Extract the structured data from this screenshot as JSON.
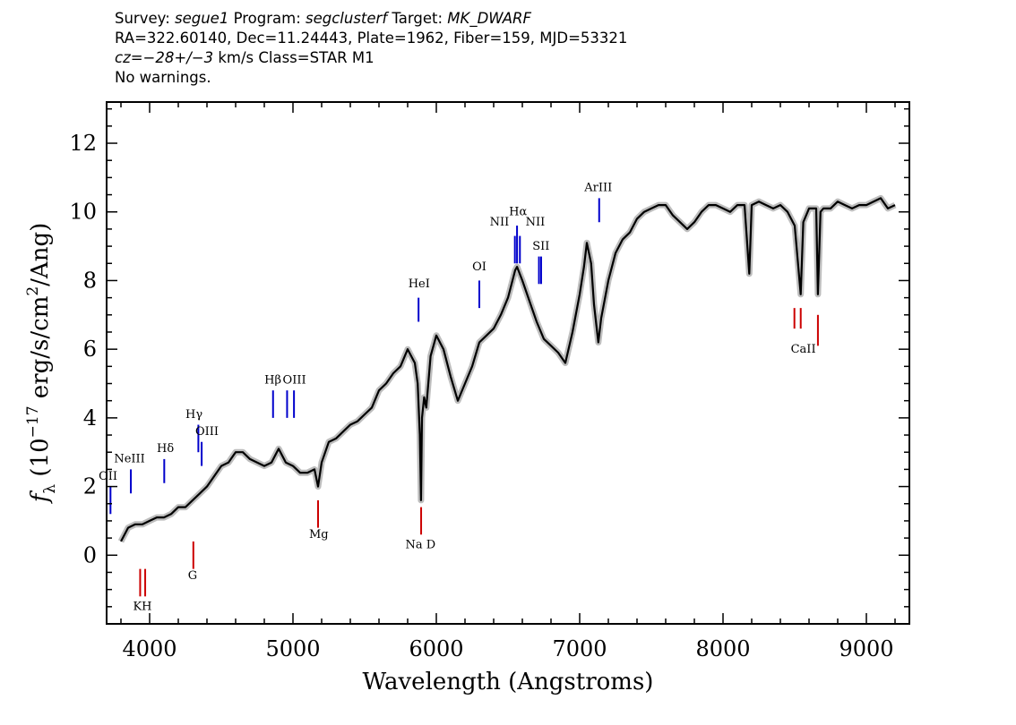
{
  "header": {
    "line1": {
      "survey_label": "Survey: ",
      "survey": "segue1",
      "program_label": " Program: ",
      "program": "segclusterf",
      "target_label": " Target: ",
      "target": "MK_DWARF"
    },
    "line2": "RA=322.60140, Dec=11.24443, Plate=1962, Fiber=159, MJD=53321",
    "line3": {
      "cz": "cz=−28+/−3",
      "rest": " km/s Class=STAR M1"
    },
    "line4": "No warnings."
  },
  "chart_data": {
    "type": "line",
    "xlabel": "Wavelength (Angstroms)",
    "ylabel": "f_λ (10^-17 erg/s/cm^2/Ang)",
    "xlim": [
      3700,
      9300
    ],
    "ylim": [
      -2,
      13.2
    ],
    "xticks": [
      4000,
      5000,
      6000,
      7000,
      8000,
      9000
    ],
    "yticks": [
      0,
      2,
      4,
      6,
      8,
      10,
      12
    ],
    "colors": {
      "flux": "#000000",
      "noise": "#bdbdbd",
      "emission": "#0000cc",
      "absorption": "#cc0000"
    },
    "series": [
      {
        "name": "flux",
        "x": [
          3800,
          3850,
          3900,
          3950,
          4000,
          4050,
          4100,
          4150,
          4200,
          4250,
          4300,
          4350,
          4400,
          4450,
          4500,
          4550,
          4600,
          4650,
          4700,
          4750,
          4800,
          4850,
          4900,
          4950,
          5000,
          5050,
          5100,
          5150,
          5175,
          5200,
          5250,
          5300,
          5350,
          5400,
          5450,
          5500,
          5550,
          5600,
          5650,
          5700,
          5750,
          5800,
          5850,
          5870,
          5885,
          5893,
          5900,
          5915,
          5930,
          5960,
          6000,
          6050,
          6100,
          6150,
          6200,
          6250,
          6300,
          6350,
          6400,
          6450,
          6500,
          6550,
          6563,
          6600,
          6650,
          6700,
          6750,
          6800,
          6850,
          6900,
          6950,
          7000,
          7030,
          7050,
          7080,
          7100,
          7130,
          7150,
          7200,
          7250,
          7300,
          7350,
          7400,
          7450,
          7500,
          7550,
          7600,
          7650,
          7700,
          7750,
          7800,
          7850,
          7900,
          7950,
          8000,
          8050,
          8100,
          8150,
          8183,
          8200,
          8250,
          8300,
          8350,
          8400,
          8450,
          8500,
          8542,
          8560,
          8600,
          8650,
          8662,
          8680,
          8700,
          8750,
          8800,
          8850,
          8900,
          8950,
          9000,
          9050,
          9100,
          9150,
          9200
        ],
        "y": [
          0.4,
          0.8,
          0.9,
          0.9,
          1.0,
          1.1,
          1.1,
          1.2,
          1.4,
          1.4,
          1.6,
          1.8,
          2.0,
          2.3,
          2.6,
          2.7,
          3.0,
          3.0,
          2.8,
          2.7,
          2.6,
          2.7,
          3.1,
          2.7,
          2.6,
          2.4,
          2.4,
          2.5,
          2.0,
          2.7,
          3.3,
          3.4,
          3.6,
          3.8,
          3.9,
          4.1,
          4.3,
          4.8,
          5.0,
          5.3,
          5.5,
          6.0,
          5.6,
          5.0,
          3.5,
          1.6,
          4.0,
          4.6,
          4.3,
          5.8,
          6.4,
          6.0,
          5.2,
          4.5,
          5.0,
          5.5,
          6.2,
          6.4,
          6.6,
          7.0,
          7.5,
          8.3,
          8.4,
          8.0,
          7.4,
          6.8,
          6.3,
          6.1,
          5.9,
          5.6,
          6.5,
          7.6,
          8.4,
          9.1,
          8.5,
          7.3,
          6.2,
          6.9,
          8.0,
          8.8,
          9.2,
          9.4,
          9.8,
          10.0,
          10.1,
          10.2,
          10.2,
          9.9,
          9.7,
          9.5,
          9.7,
          10.0,
          10.2,
          10.2,
          10.1,
          10.0,
          10.2,
          10.2,
          8.2,
          10.2,
          10.3,
          10.2,
          10.1,
          10.2,
          10.0,
          9.6,
          7.6,
          9.7,
          10.1,
          10.1,
          7.6,
          10.0,
          10.1,
          10.1,
          10.3,
          10.2,
          10.1,
          10.2,
          10.2,
          10.3,
          10.4,
          10.1,
          10.2
        ]
      }
    ],
    "emission_lines": [
      {
        "label": "OII",
        "wave": 3727,
        "ymin": 1.2,
        "ymax": 2.0
      },
      {
        "label": "NeIII",
        "wave": 3869,
        "ymin": 1.8,
        "ymax": 2.5
      },
      {
        "label": "Hδ",
        "wave": 4102,
        "ymin": 2.1,
        "ymax": 2.8
      },
      {
        "label": "Hγ",
        "wave": 4340,
        "ymin": 3.0,
        "ymax": 3.8
      },
      {
        "label": "OIII",
        "wave": 4363,
        "ymin": 2.6,
        "ymax": 3.3
      },
      {
        "label": "Hβ",
        "wave": 4861,
        "ymin": 4.0,
        "ymax": 4.8
      },
      {
        "label": "OIII",
        "wave": 4959,
        "ymin": 4.0,
        "ymax": 4.8
      },
      {
        "label": "OIII",
        "wave": 5007,
        "ymin": 4.0,
        "ymax": 4.8
      },
      {
        "label": "HeI",
        "wave": 5876,
        "ymin": 6.8,
        "ymax": 7.5
      },
      {
        "label": "OI",
        "wave": 6300,
        "ymin": 7.2,
        "ymax": 8.0
      },
      {
        "label": "NII",
        "wave": 6548,
        "ymin": 8.5,
        "ymax": 9.3
      },
      {
        "label": "Hα",
        "wave": 6563,
        "ymin": 8.5,
        "ymax": 9.6
      },
      {
        "label": "NII",
        "wave": 6583,
        "ymin": 8.5,
        "ymax": 9.3
      },
      {
        "label": "SII",
        "wave": 6716,
        "ymin": 7.9,
        "ymax": 8.7
      },
      {
        "label": "SII",
        "wave": 6731,
        "ymin": 7.9,
        "ymax": 8.7
      },
      {
        "label": "ArIII",
        "wave": 7136,
        "ymin": 9.7,
        "ymax": 10.4
      }
    ],
    "absorption_lines": [
      {
        "label": "K",
        "wave": 3934,
        "ymin": -1.2,
        "ymax": -0.4
      },
      {
        "label": "H",
        "wave": 3969,
        "ymin": -1.2,
        "ymax": -0.4
      },
      {
        "label": "G",
        "wave": 4305,
        "ymin": -0.4,
        "ymax": 0.4
      },
      {
        "label": "Mg",
        "wave": 5175,
        "ymin": 0.8,
        "ymax": 1.6
      },
      {
        "label": "Na D",
        "wave": 5894,
        "ymin": 0.6,
        "ymax": 1.4
      },
      {
        "label": "CaII",
        "wave": 8498,
        "ymin": 6.6,
        "ymax": 7.2
      },
      {
        "label": "CaII",
        "wave": 8542,
        "ymin": 6.6,
        "ymax": 7.2
      },
      {
        "label": "CaII",
        "wave": 8662,
        "ymin": 6.1,
        "ymax": 7.0
      }
    ],
    "line_labels": [
      {
        "text": "OII",
        "wave": 3710,
        "y": 2.2
      },
      {
        "text": "NeIII",
        "wave": 3860,
        "y": 2.7
      },
      {
        "text": "Hδ",
        "wave": 4110,
        "y": 3.0
      },
      {
        "text": "Hγ",
        "wave": 4310,
        "y": 4.0
      },
      {
        "text": "OIII",
        "wave": 4400,
        "y": 3.5
      },
      {
        "text": "Hβ",
        "wave": 4860,
        "y": 5.0
      },
      {
        "text": "OIII",
        "wave": 5010,
        "y": 5.0
      },
      {
        "text": "HeI",
        "wave": 5880,
        "y": 7.8
      },
      {
        "text": "OI",
        "wave": 6300,
        "y": 8.3
      },
      {
        "text": "NII",
        "wave": 6440,
        "y": 9.6
      },
      {
        "text": "Hα",
        "wave": 6570,
        "y": 9.9
      },
      {
        "text": "NII",
        "wave": 6690,
        "y": 9.6
      },
      {
        "text": "SII",
        "wave": 6730,
        "y": 8.9
      },
      {
        "text": "ArIII",
        "wave": 7130,
        "y": 10.6
      },
      {
        "text": "KH",
        "wave": 3950,
        "y": -1.6
      },
      {
        "text": "G",
        "wave": 4300,
        "y": -0.7
      },
      {
        "text": "Mg",
        "wave": 5180,
        "y": 0.5
      },
      {
        "text": "Na D",
        "wave": 5890,
        "y": 0.2
      },
      {
        "text": "CaII",
        "wave": 8560,
        "y": 5.9
      }
    ]
  }
}
